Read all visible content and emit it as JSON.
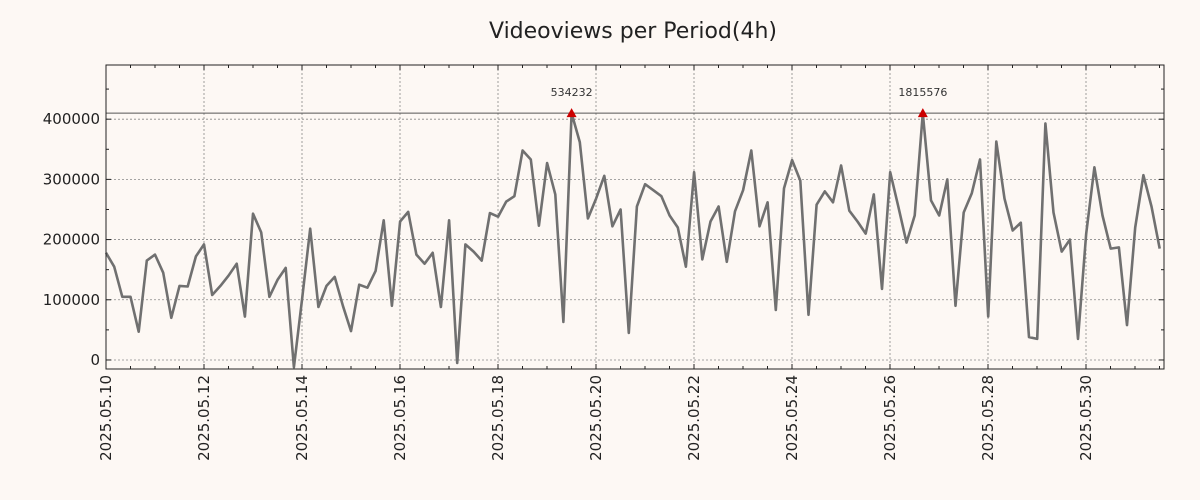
{
  "chart_data": {
    "type": "line",
    "title": "Videoviews per Period(4h)",
    "xlabel": "",
    "ylabel": "",
    "ylim": [
      -15000,
      490000
    ],
    "x_start_day": 0,
    "step_days": 0.1667,
    "threshold": 410000,
    "yticks": [
      0,
      100000,
      200000,
      300000,
      400000
    ],
    "ytick_labels": [
      "0",
      "100000",
      "200000",
      "300000",
      "400000"
    ],
    "xtick_days": [
      0,
      2,
      4,
      6,
      8,
      10,
      12,
      14,
      16,
      18,
      20
    ],
    "xtick_labels": [
      "2025.05.10",
      "2025.05.12",
      "2025.05.14",
      "2025.05.16",
      "2025.05.18",
      "2025.05.20",
      "2025.05.22",
      "2025.05.24",
      "2025.05.26",
      "2025.05.28",
      "2025.05.30"
    ],
    "series": [
      {
        "name": "Videoviews",
        "color": "#707070",
        "values": [
          178000,
          155000,
          105000,
          105000,
          47000,
          165000,
          175000,
          145000,
          70000,
          123000,
          122000,
          172000,
          192000,
          108000,
          123000,
          140000,
          160000,
          72000,
          243000,
          212000,
          105000,
          133000,
          153000,
          -12000,
          100000,
          218000,
          88000,
          123000,
          138000,
          90000,
          48000,
          125000,
          120000,
          148000,
          232000,
          90000,
          230000,
          246000,
          175000,
          160000,
          178000,
          88000,
          232000,
          -5000,
          192000,
          180000,
          165000,
          244000,
          238000,
          263000,
          272000,
          348000,
          333000,
          223000,
          327000,
          275000,
          63000,
          410000,
          362000,
          235000,
          268000,
          306000,
          222000,
          250000,
          45000,
          255000,
          292000,
          282000,
          272000,
          240000,
          220000,
          155000,
          312000,
          167000,
          230000,
          255000,
          163000,
          247000,
          282000,
          348000,
          222000,
          262000,
          83000,
          285000,
          332000,
          298000,
          75000,
          258000,
          280000,
          262000,
          323000,
          248000,
          230000,
          210000,
          275000,
          118000,
          312000,
          255000,
          195000,
          240000,
          410000,
          265000,
          240000,
          300000,
          90000,
          245000,
          277000,
          333000,
          72000,
          363000,
          268000,
          215000,
          228000,
          38000,
          35000,
          393000,
          245000,
          180000,
          200000,
          35000,
          210000,
          320000,
          240000,
          185000,
          187000,
          58000,
          220000,
          307000,
          255000,
          185000
        ]
      }
    ],
    "markers": [
      {
        "index": 57,
        "label": "534232",
        "color": "#cc0000"
      },
      {
        "index": 100,
        "label": "1815576",
        "color": "#cc0000"
      }
    ]
  }
}
